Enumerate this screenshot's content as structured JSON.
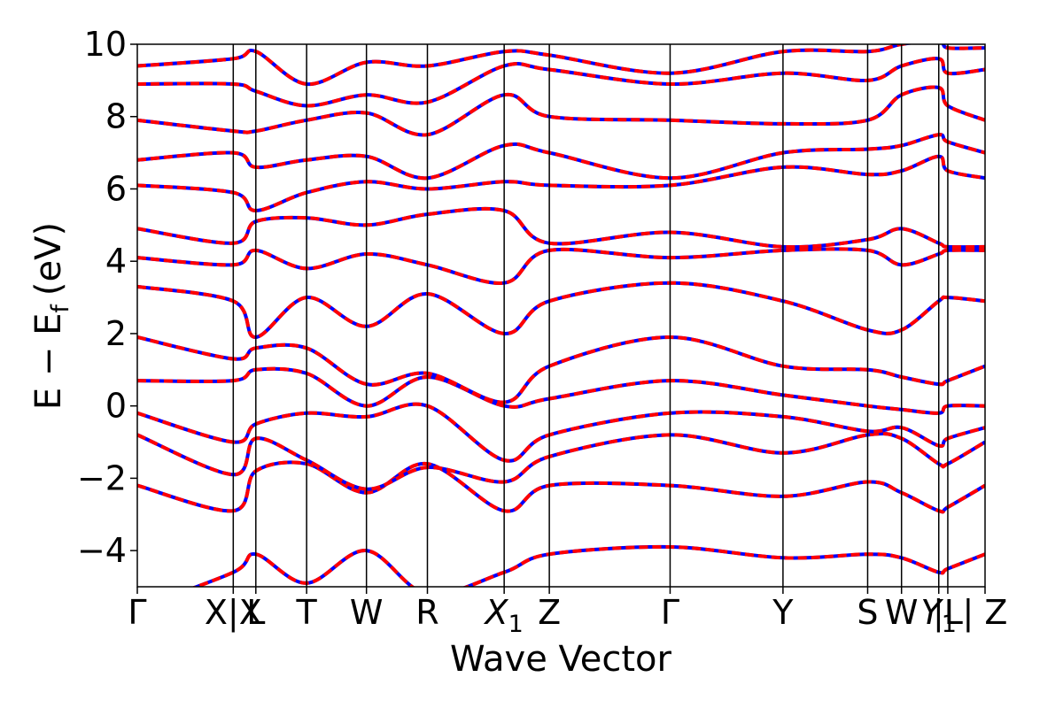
{
  "chart_data": {
    "type": "line",
    "xlabel": "Wave Vector",
    "ylabel": "E − E",
    "ylabel_sub": "f",
    "ylabel_unit": "(eV)",
    "ylim": [
      -5,
      10
    ],
    "yticks": [
      10,
      8,
      6,
      4,
      2,
      0,
      -2,
      -4
    ],
    "ytick_labels": [
      "10",
      "8",
      "6",
      "4",
      "2",
      "0",
      "−2",
      "−4"
    ],
    "grid": false,
    "kpath": [
      {
        "label": "Γ",
        "x": 0.0
      },
      {
        "label": "X|X",
        "x": 0.85
      },
      {
        "label": "L",
        "x": 1.05
      },
      {
        "label": "T",
        "x": 1.5
      },
      {
        "label": "W",
        "x": 2.03
      },
      {
        "label": "R",
        "x": 2.57
      },
      {
        "label": "X",
        "sub": "1",
        "x": 3.25
      },
      {
        "label": "Z",
        "x": 3.65
      },
      {
        "label": "Γ",
        "x": 4.72
      },
      {
        "label": "Y",
        "x": 5.72
      },
      {
        "label": "S",
        "x": 6.47
      },
      {
        "label": "W",
        "x": 6.77
      },
      {
        "label": "Y",
        "sub": "1",
        "x": 7.1
      },
      {
        "label": "|L",
        "x": 7.18
      },
      {
        "label": "| Z",
        "x": 7.51
      }
    ],
    "xlim": [
      0,
      7.51
    ],
    "line_colors": {
      "dft": "#0000ff",
      "wannier": "#ff0000"
    },
    "bands_at_kpoints": [
      [
        -5.6,
        -4.6,
        -4.1,
        -4.9,
        -4.0,
        -5.2,
        -4.6,
        -4.1,
        -3.9,
        -4.2,
        -4.1,
        -4.2,
        -4.6,
        -4.5,
        -4.1
      ],
      [
        -2.2,
        -2.9,
        -1.8,
        -1.6,
        -2.4,
        -1.6,
        -2.9,
        -2.2,
        -2.2,
        -2.5,
        -2.1,
        -2.4,
        -2.9,
        -2.8,
        -2.2
      ],
      [
        -0.8,
        -1.9,
        -0.9,
        -1.5,
        -2.3,
        -1.7,
        -2.1,
        -1.4,
        -0.8,
        -1.3,
        -0.8,
        -0.9,
        -1.6,
        -1.6,
        -1.0
      ],
      [
        -0.2,
        -1.0,
        -0.5,
        -0.2,
        -0.3,
        0.0,
        -1.5,
        -0.8,
        -0.2,
        -0.3,
        -0.7,
        -0.6,
        -1.1,
        -0.9,
        -0.6
      ],
      [
        0.7,
        0.7,
        1.0,
        0.9,
        0.0,
        0.8,
        0.0,
        0.2,
        0.7,
        0.3,
        0.0,
        -0.1,
        -0.2,
        0.0,
        0.0
      ],
      [
        1.9,
        1.3,
        1.6,
        1.6,
        0.6,
        0.9,
        0.1,
        1.1,
        1.9,
        1.1,
        1.0,
        0.8,
        0.6,
        0.7,
        1.1
      ],
      [
        3.3,
        2.9,
        1.9,
        3.0,
        2.2,
        3.1,
        2.0,
        2.9,
        3.4,
        2.9,
        2.1,
        2.1,
        2.9,
        3.0,
        2.9
      ],
      [
        4.1,
        3.9,
        4.3,
        3.8,
        4.2,
        3.9,
        3.4,
        4.3,
        4.1,
        4.3,
        4.3,
        3.9,
        4.2,
        4.3,
        4.3
      ],
      [
        4.9,
        4.5,
        5.1,
        5.2,
        5.0,
        5.3,
        5.4,
        4.5,
        4.8,
        4.4,
        4.6,
        4.9,
        4.5,
        4.4,
        4.4
      ],
      [
        6.1,
        5.9,
        5.4,
        5.9,
        6.2,
        6.0,
        6.2,
        6.1,
        6.1,
        6.6,
        6.4,
        6.5,
        6.9,
        6.5,
        6.3
      ],
      [
        6.8,
        7.0,
        6.6,
        6.8,
        6.9,
        6.3,
        7.2,
        7.0,
        6.3,
        7.0,
        7.1,
        7.2,
        7.5,
        7.3,
        7.0
      ],
      [
        7.9,
        7.6,
        7.6,
        7.9,
        8.1,
        7.5,
        8.6,
        8.0,
        7.9,
        7.8,
        7.9,
        8.6,
        8.8,
        8.3,
        7.9
      ],
      [
        8.9,
        8.9,
        8.7,
        8.3,
        8.6,
        8.4,
        9.4,
        9.3,
        8.9,
        9.2,
        9.0,
        9.4,
        9.6,
        9.2,
        9.3
      ],
      [
        9.4,
        9.6,
        9.8,
        8.9,
        9.5,
        9.4,
        9.8,
        9.7,
        9.2,
        9.8,
        9.8,
        10.0,
        10.1,
        9.9,
        9.9
      ]
    ]
  }
}
